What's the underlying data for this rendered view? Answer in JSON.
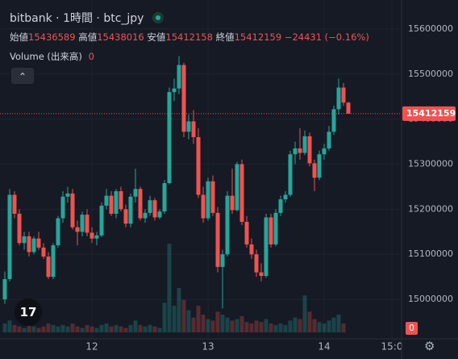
{
  "header": {
    "title": "bitbank · 1時間 · btc_jpy",
    "open_label": "始値",
    "high_label": "高値",
    "low_label": "安値",
    "close_label": "終値",
    "change": "−24431 (−0.16%)",
    "volume_label": "Volume (出来高)"
  },
  "chart_data": {
    "type": "candlestick",
    "x": [
      0,
      1,
      2,
      3,
      4,
      5,
      6,
      7,
      8,
      9,
      10,
      11,
      12,
      13,
      14,
      15,
      16,
      17,
      18,
      19,
      20,
      21,
      22,
      23,
      24,
      25,
      26,
      27,
      28,
      29,
      30,
      31,
      32,
      33,
      34,
      35,
      36,
      37,
      38,
      39,
      40,
      41,
      42,
      43,
      44,
      45,
      46,
      47,
      48,
      49,
      50,
      51,
      52,
      53,
      54,
      55,
      56,
      57,
      58,
      59,
      60,
      61,
      62,
      63,
      64,
      65,
      66,
      67,
      68,
      69,
      70,
      71
    ],
    "open": [
      15000000,
      15045000,
      15232000,
      15190000,
      15125000,
      15140000,
      15105000,
      15135000,
      15115000,
      15095000,
      15050000,
      15120000,
      15180000,
      15228000,
      15235000,
      15160000,
      15150000,
      15188000,
      15148000,
      15135000,
      15142000,
      15208000,
      15230000,
      15190000,
      15240000,
      15200000,
      15168000,
      15228000,
      15245000,
      15180000,
      15192000,
      15220000,
      15182000,
      15195000,
      15258000,
      15460000,
      15468000,
      15520000,
      15372000,
      15395000,
      15360000,
      15232000,
      15180000,
      15262000,
      15192000,
      15072000,
      15100000,
      15230000,
      15198000,
      15300000,
      15172000,
      15122000,
      15100000,
      15060000,
      15052000,
      15182000,
      15122000,
      15192000,
      15222000,
      15232000,
      15322000,
      15335000,
      15325000,
      15362000,
      15302000,
      15270000,
      15322000,
      15335000,
      15372000,
      15422000,
      15470000,
      15436589
    ],
    "high": [
      15062000,
      15245000,
      15240000,
      15200000,
      15150000,
      15150000,
      15140000,
      15150000,
      15125000,
      15105000,
      15125000,
      15185000,
      15240000,
      15250000,
      15245000,
      15175000,
      15195000,
      15200000,
      15160000,
      15150000,
      15215000,
      15245000,
      15240000,
      15245000,
      15250000,
      15210000,
      15235000,
      15290000,
      15250000,
      15200000,
      15230000,
      15225000,
      15200000,
      15265000,
      15470000,
      15490000,
      15540000,
      15525000,
      15410000,
      15420000,
      15380000,
      15250000,
      15270000,
      15275000,
      15205000,
      15110000,
      15240000,
      15290000,
      15305000,
      15310000,
      15185000,
      15135000,
      15110000,
      15080000,
      15190000,
      15190000,
      15200000,
      15230000,
      15240000,
      15330000,
      15350000,
      15380000,
      15375000,
      15370000,
      15310000,
      15330000,
      15345000,
      15385000,
      15430000,
      15490000,
      15480000,
      15438016
    ],
    "low": [
      14990000,
      15040000,
      15180000,
      15120000,
      15110000,
      15095000,
      15100000,
      15110000,
      15090000,
      15045000,
      15045000,
      15115000,
      15170000,
      15215000,
      15155000,
      15120000,
      15140000,
      15140000,
      15125000,
      15120000,
      15138000,
      15200000,
      15185000,
      15180000,
      15195000,
      15160000,
      15160000,
      15215000,
      15175000,
      15170000,
      15185000,
      15175000,
      15178000,
      15190000,
      15255000,
      15440000,
      15455000,
      15360000,
      15355000,
      15345000,
      15225000,
      15170000,
      15175000,
      15185000,
      15060000,
      14980000,
      15095000,
      15190000,
      15195000,
      15165000,
      15115000,
      15090000,
      15050000,
      15040000,
      15048000,
      15115000,
      15118000,
      15185000,
      15215000,
      15228000,
      15300000,
      15310000,
      15320000,
      15295000,
      15240000,
      15265000,
      15310000,
      15330000,
      15365000,
      15410000,
      15430000,
      15412158
    ],
    "close": [
      15045000,
      15232000,
      15190000,
      15125000,
      15140000,
      15105000,
      15135000,
      15115000,
      15095000,
      15050000,
      15120000,
      15180000,
      15228000,
      15235000,
      15160000,
      15150000,
      15188000,
      15148000,
      15135000,
      15142000,
      15208000,
      15230000,
      15190000,
      15240000,
      15200000,
      15168000,
      15228000,
      15245000,
      15180000,
      15192000,
      15220000,
      15182000,
      15195000,
      15258000,
      15460000,
      15468000,
      15520000,
      15372000,
      15395000,
      15360000,
      15232000,
      15180000,
      15262000,
      15192000,
      15072000,
      15100000,
      15230000,
      15198000,
      15300000,
      15172000,
      15122000,
      15100000,
      15060000,
      15052000,
      15182000,
      15122000,
      15192000,
      15222000,
      15232000,
      15322000,
      15335000,
      15325000,
      15362000,
      15302000,
      15270000,
      15322000,
      15335000,
      15372000,
      15422000,
      15470000,
      15436589,
      15412159
    ],
    "volume": [
      6,
      8,
      5,
      4,
      3,
      5,
      4,
      3,
      4,
      6,
      5,
      4,
      5,
      4,
      6,
      4,
      3,
      5,
      4,
      3,
      5,
      6,
      4,
      5,
      4,
      3,
      5,
      8,
      5,
      4,
      5,
      4,
      3,
      20,
      60,
      18,
      30,
      22,
      15,
      10,
      18,
      12,
      9,
      8,
      14,
      12,
      10,
      8,
      9,
      11,
      7,
      6,
      8,
      7,
      9,
      6,
      5,
      6,
      5,
      8,
      10,
      9,
      25,
      14,
      9,
      7,
      6,
      8,
      10,
      12,
      6,
      0
    ],
    "up_color": "#26a69a",
    "down_color": "#ef5350",
    "xlim": [
      -1,
      82
    ],
    "xticks": [
      {
        "value": 18,
        "label": "12"
      },
      {
        "value": 42,
        "label": "13"
      },
      {
        "value": 66,
        "label": "14"
      },
      {
        "value": 80,
        "label": "15:0"
      }
    ],
    "ylim": [
      14912500,
      15664286
    ],
    "yticks": [
      15000000,
      15100000,
      15200000,
      15300000,
      15400000,
      15500000,
      15600000
    ],
    "grid": true
  }
}
